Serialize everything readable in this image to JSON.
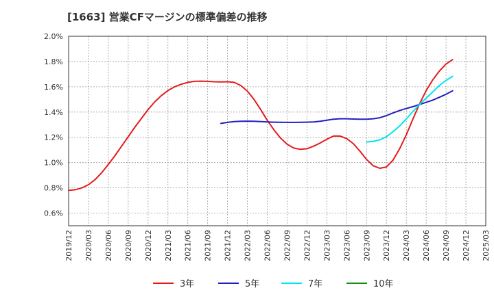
{
  "chart_data": {
    "type": "line",
    "title": "[1663]  営業CFマージンの標準偏差の推移",
    "xlabel": "",
    "ylabel": "",
    "ylim": [
      0.5,
      2.0
    ],
    "y_ticks": [
      "0.6%",
      "0.8%",
      "1.0%",
      "1.2%",
      "1.4%",
      "1.6%",
      "1.8%",
      "2.0%"
    ],
    "y_tick_values": [
      0.6,
      0.8,
      1.0,
      1.2,
      1.4,
      1.6,
      1.8,
      2.0
    ],
    "x_ticks": [
      "2019/12",
      "2020/03",
      "2020/06",
      "2020/09",
      "2020/12",
      "2021/03",
      "2021/06",
      "2021/09",
      "2021/12",
      "2022/03",
      "2022/06",
      "2022/09",
      "2022/12",
      "2023/03",
      "2023/06",
      "2023/09",
      "2023/12",
      "2024/03",
      "2024/06",
      "2024/09",
      "2024/12",
      "2025/03"
    ],
    "grid": true,
    "legend_position": "bottom",
    "series": [
      {
        "name": "3年",
        "color": "#e31a1c",
        "points": [
          [
            "2019/12",
            0.78
          ],
          [
            "2020/01",
            0.785
          ],
          [
            "2020/02",
            0.8
          ],
          [
            "2020/03",
            0.825
          ],
          [
            "2020/04",
            0.865
          ],
          [
            "2020/05",
            0.92
          ],
          [
            "2020/06",
            0.985
          ],
          [
            "2020/07",
            1.055
          ],
          [
            "2020/08",
            1.13
          ],
          [
            "2020/09",
            1.205
          ],
          [
            "2020/10",
            1.28
          ],
          [
            "2020/11",
            1.35
          ],
          [
            "2020/12",
            1.42
          ],
          [
            "2021/01",
            1.48
          ],
          [
            "2021/02",
            1.53
          ],
          [
            "2021/03",
            1.57
          ],
          [
            "2021/04",
            1.6
          ],
          [
            "2021/05",
            1.62
          ],
          [
            "2021/06",
            1.635
          ],
          [
            "2021/07",
            1.643
          ],
          [
            "2021/08",
            1.645
          ],
          [
            "2021/09",
            1.643
          ],
          [
            "2021/10",
            1.64
          ],
          [
            "2021/11",
            1.638
          ],
          [
            "2021/12",
            1.64
          ],
          [
            "2022/01",
            1.635
          ],
          [
            "2022/02",
            1.61
          ],
          [
            "2022/03",
            1.565
          ],
          [
            "2022/04",
            1.5
          ],
          [
            "2022/05",
            1.42
          ],
          [
            "2022/06",
            1.335
          ],
          [
            "2022/07",
            1.26
          ],
          [
            "2022/08",
            1.195
          ],
          [
            "2022/09",
            1.145
          ],
          [
            "2022/10",
            1.115
          ],
          [
            "2022/11",
            1.105
          ],
          [
            "2022/12",
            1.11
          ],
          [
            "2023/01",
            1.13
          ],
          [
            "2023/02",
            1.155
          ],
          [
            "2023/03",
            1.185
          ],
          [
            "2023/04",
            1.21
          ],
          [
            "2023/05",
            1.21
          ],
          [
            "2023/06",
            1.19
          ],
          [
            "2023/07",
            1.15
          ],
          [
            "2023/08",
            1.09
          ],
          [
            "2023/09",
            1.025
          ],
          [
            "2023/10",
            0.975
          ],
          [
            "2023/11",
            0.955
          ],
          [
            "2023/12",
            0.965
          ],
          [
            "2024/01",
            1.02
          ],
          [
            "2024/02",
            1.11
          ],
          [
            "2024/03",
            1.22
          ],
          [
            "2024/04",
            1.345
          ],
          [
            "2024/05",
            1.465
          ],
          [
            "2024/06",
            1.57
          ],
          [
            "2024/07",
            1.655
          ],
          [
            "2024/08",
            1.725
          ],
          [
            "2024/09",
            1.78
          ],
          [
            "2024/10",
            1.815
          ]
        ]
      },
      {
        "name": "5年",
        "color": "#1f1fbf",
        "points": [
          [
            "2021/11",
            1.31
          ],
          [
            "2021/12",
            1.318
          ],
          [
            "2022/01",
            1.324
          ],
          [
            "2022/02",
            1.327
          ],
          [
            "2022/03",
            1.328
          ],
          [
            "2022/04",
            1.327
          ],
          [
            "2022/05",
            1.325
          ],
          [
            "2022/06",
            1.322
          ],
          [
            "2022/07",
            1.32
          ],
          [
            "2022/08",
            1.319
          ],
          [
            "2022/09",
            1.318
          ],
          [
            "2022/10",
            1.318
          ],
          [
            "2022/11",
            1.319
          ],
          [
            "2022/12",
            1.32
          ],
          [
            "2023/01",
            1.322
          ],
          [
            "2023/02",
            1.327
          ],
          [
            "2023/03",
            1.335
          ],
          [
            "2023/04",
            1.343
          ],
          [
            "2023/05",
            1.347
          ],
          [
            "2023/06",
            1.347
          ],
          [
            "2023/07",
            1.345
          ],
          [
            "2023/08",
            1.343
          ],
          [
            "2023/09",
            1.343
          ],
          [
            "2023/10",
            1.347
          ],
          [
            "2023/11",
            1.355
          ],
          [
            "2023/12",
            1.372
          ],
          [
            "2024/01",
            1.393
          ],
          [
            "2024/02",
            1.412
          ],
          [
            "2024/03",
            1.428
          ],
          [
            "2024/04",
            1.443
          ],
          [
            "2024/05",
            1.46
          ],
          [
            "2024/06",
            1.477
          ],
          [
            "2024/07",
            1.495
          ],
          [
            "2024/08",
            1.517
          ],
          [
            "2024/09",
            1.541
          ],
          [
            "2024/10",
            1.568
          ]
        ]
      },
      {
        "name": "7年",
        "color": "#00e5ee",
        "points": [
          [
            "2023/09",
            1.163
          ],
          [
            "2023/10",
            1.168
          ],
          [
            "2023/11",
            1.18
          ],
          [
            "2023/12",
            1.205
          ],
          [
            "2024/01",
            1.245
          ],
          [
            "2024/02",
            1.29
          ],
          [
            "2024/03",
            1.345
          ],
          [
            "2024/04",
            1.405
          ],
          [
            "2024/05",
            1.46
          ],
          [
            "2024/06",
            1.51
          ],
          [
            "2024/07",
            1.56
          ],
          [
            "2024/08",
            1.61
          ],
          [
            "2024/09",
            1.65
          ],
          [
            "2024/10",
            1.683
          ]
        ]
      },
      {
        "name": "10年",
        "color": "#1a8c1a",
        "points": []
      }
    ]
  }
}
